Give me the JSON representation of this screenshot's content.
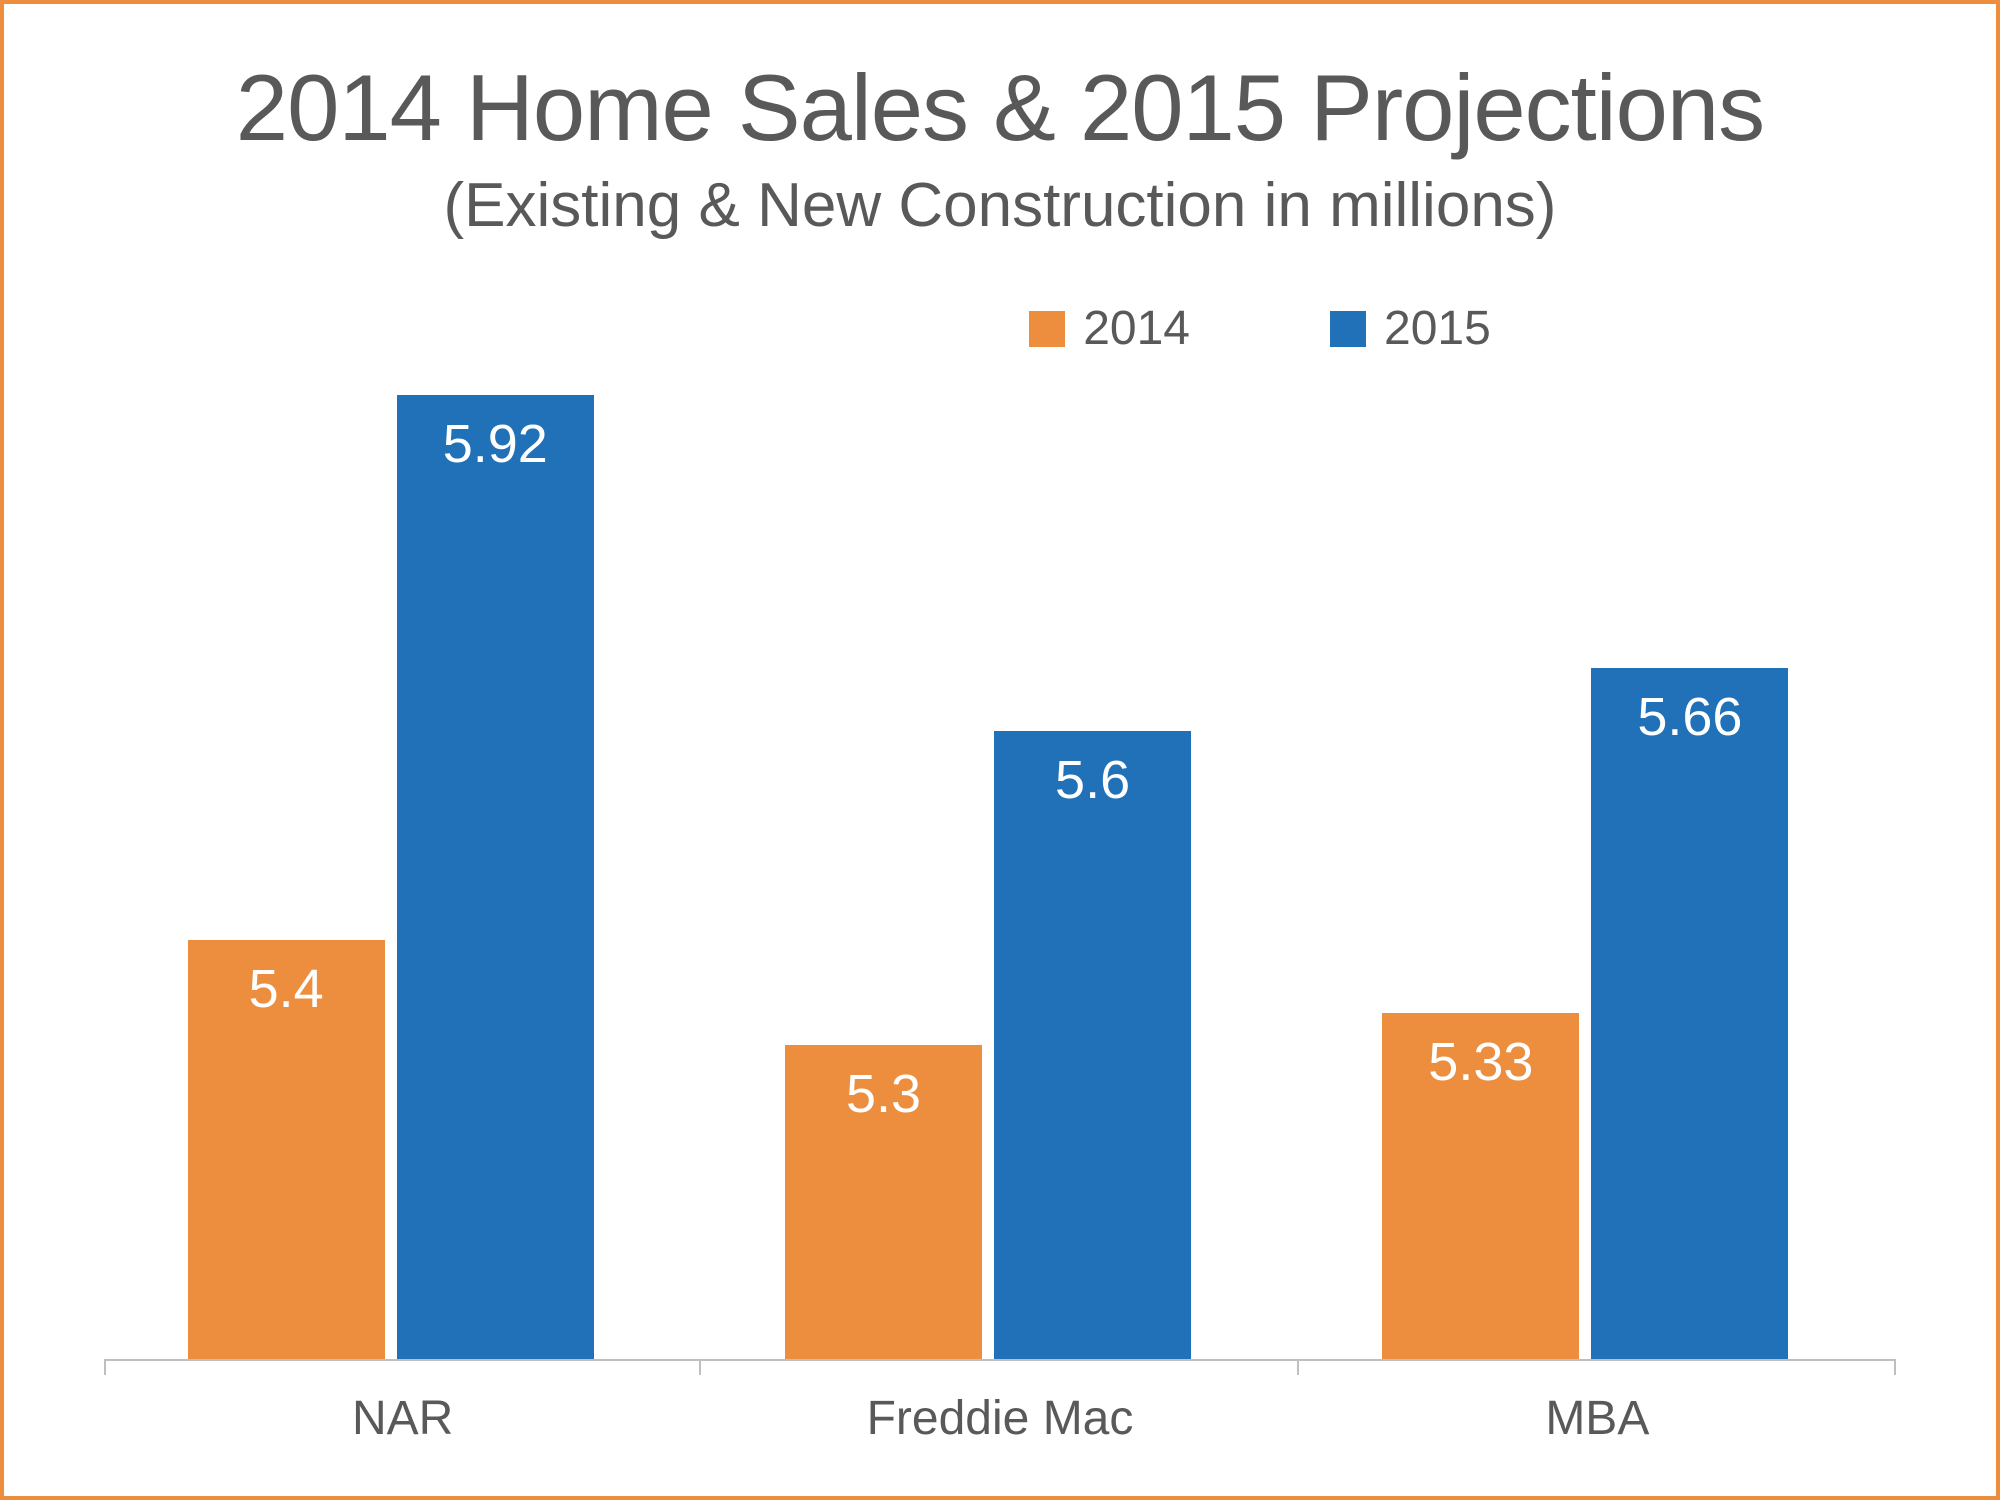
{
  "chart": {
    "type": "bar",
    "title": "2014 Home Sales & 2015 Projections",
    "subtitle": "(Existing & New Construction in millions)",
    "background_color": "#ffffff",
    "border_color": "#ed8e3f",
    "text_color": "#595959",
    "title_fontsize": 94,
    "subtitle_fontsize": 62,
    "label_fontsize": 48,
    "value_label_fontsize": 54,
    "value_label_color": "#ffffff",
    "categories": [
      "NAR",
      "Freddie Mac",
      "MBA"
    ],
    "series": [
      {
        "name": "2014",
        "color": "#ed8e3f",
        "values": [
          5.4,
          5.3,
          5.33
        ],
        "labels": [
          "5.4",
          "5.3",
          "5.33"
        ]
      },
      {
        "name": "2015",
        "color": "#2171b8",
        "values": [
          5.92,
          5.6,
          5.66
        ],
        "labels": [
          "5.92",
          "5.6",
          "5.66"
        ]
      }
    ],
    "y_baseline": 5.0,
    "y_max": 5.95,
    "bar_width_pct": 33,
    "bar_gap_pct": 2,
    "group_inner_offset_pct": 14,
    "axis_color": "#bfbfbf",
    "legend": {
      "items": [
        {
          "label": "2014",
          "color": "#ed8e3f"
        },
        {
          "label": "2015",
          "color": "#2171b8"
        }
      ]
    }
  }
}
